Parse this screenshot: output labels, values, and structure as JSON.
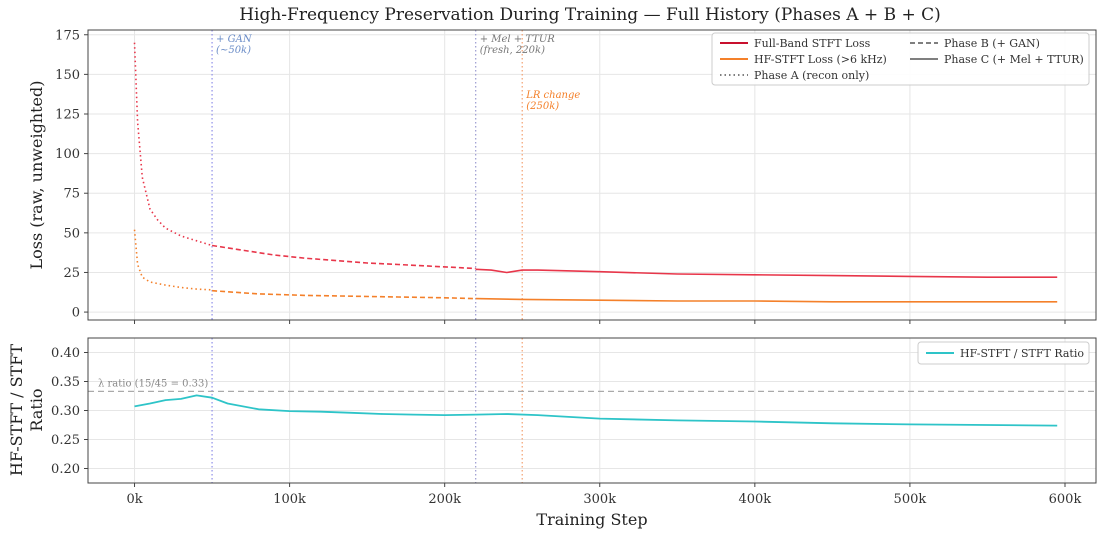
{
  "chart_data": [
    {
      "type": "line",
      "title": "High-Frequency Preservation During Training — Full History (Phases A + B + C)",
      "xlabel": "",
      "ylabel": "Loss (raw, unweighted)",
      "xlim": [
        -30000,
        620000
      ],
      "ylim": [
        -5,
        178
      ],
      "yticks": [
        0,
        25,
        50,
        75,
        100,
        125,
        150,
        175
      ],
      "grid": true,
      "legend_position": "top-right",
      "legend": [
        {
          "label": "Full-Band STFT Loss",
          "color": "#c8102e",
          "style": "solid"
        },
        {
          "label": "HF-STFT Loss (>6 kHz)",
          "color": "#f4802a",
          "style": "solid"
        },
        {
          "label": "Phase A (recon only)",
          "color": "#555555",
          "style": "dotted"
        },
        {
          "label": "Phase B (+ GAN)",
          "color": "#555555",
          "style": "dashed"
        },
        {
          "label": "Phase C (+ Mel + TTUR)",
          "color": "#555555",
          "style": "solid"
        }
      ],
      "series": [
        {
          "name": "Full-Band STFT Loss",
          "color": "#e8364a",
          "phases": [
            {
              "phase": "A",
              "style": "dotted",
              "x": [
                0,
                2000,
                5000,
                10000,
                15000,
                20000,
                30000,
                40000,
                50000
              ],
              "y": [
                170,
                120,
                85,
                65,
                58,
                53,
                48,
                45,
                42
              ]
            },
            {
              "phase": "B",
              "style": "dashed",
              "x": [
                50000,
                70000,
                90000,
                110000,
                130000,
                150000,
                170000,
                190000,
                210000,
                220000
              ],
              "y": [
                42,
                39,
                36,
                34,
                32.5,
                31,
                30,
                29,
                28,
                27.5
              ]
            },
            {
              "phase": "C",
              "style": "solid",
              "x": [
                220000,
                230000,
                240000,
                250000,
                260000,
                300000,
                350000,
                400000,
                450000,
                500000,
                550000,
                595000
              ],
              "y": [
                27,
                26.5,
                25,
                26.5,
                26.5,
                25.5,
                24,
                23.5,
                23,
                22.5,
                22,
                22
              ]
            }
          ]
        },
        {
          "name": "HF-STFT Loss (>6 kHz)",
          "color": "#f4802a",
          "phases": [
            {
              "phase": "A",
              "style": "dotted",
              "x": [
                0,
                2000,
                5000,
                10000,
                20000,
                30000,
                40000,
                50000
              ],
              "y": [
                52,
                30,
                22,
                19,
                17,
                15.5,
                14.5,
                14
              ]
            },
            {
              "phase": "B",
              "style": "dashed",
              "x": [
                50000,
                80000,
                110000,
                140000,
                170000,
                200000,
                220000
              ],
              "y": [
                13.5,
                11.5,
                10.5,
                10,
                9.5,
                9,
                8.5
              ]
            },
            {
              "phase": "C",
              "style": "solid",
              "x": [
                220000,
                250000,
                300000,
                350000,
                400000,
                450000,
                500000,
                550000,
                595000
              ],
              "y": [
                8.5,
                8,
                7.5,
                7,
                7,
                6.5,
                6.5,
                6.5,
                6.5
              ]
            }
          ]
        }
      ],
      "vlines": [
        {
          "x": 50000,
          "color": "#8e8ee8",
          "label": "+ GAN\n(~50k)",
          "label_color": "#6a8cc7"
        },
        {
          "x": 220000,
          "color": "#9a9ad0",
          "label": "+ Mel + TTUR\n(fresh, 220k)",
          "label_color": "#777777"
        },
        {
          "x": 250000,
          "color": "#f4a070",
          "label": "LR change\n(250k)",
          "label_color": "#f4802a"
        }
      ]
    },
    {
      "type": "line",
      "title": "",
      "xlabel": "Training Step",
      "ylabel": "HF-STFT / STFT\nRatio",
      "xlim": [
        -30000,
        620000
      ],
      "ylim": [
        0.175,
        0.425
      ],
      "yticks": [
        0.2,
        0.25,
        0.3,
        0.35,
        0.4
      ],
      "xticks": [
        0,
        100000,
        200000,
        300000,
        400000,
        500000,
        600000
      ],
      "xtick_labels": [
        "0k",
        "100k",
        "200k",
        "300k",
        "400k",
        "500k",
        "600k"
      ],
      "grid": true,
      "legend_position": "top-right",
      "legend": [
        {
          "label": "HF-STFT / STFT Ratio",
          "color": "#2ec4c8",
          "style": "solid"
        }
      ],
      "series": [
        {
          "name": "HF-STFT / STFT Ratio",
          "color": "#2ec4c8",
          "x": [
            0,
            10000,
            20000,
            30000,
            40000,
            50000,
            60000,
            80000,
            100000,
            120000,
            140000,
            160000,
            180000,
            200000,
            220000,
            240000,
            260000,
            300000,
            350000,
            400000,
            450000,
            500000,
            550000,
            595000
          ],
          "y": [
            0.307,
            0.312,
            0.318,
            0.32,
            0.326,
            0.322,
            0.312,
            0.302,
            0.299,
            0.298,
            0.296,
            0.294,
            0.293,
            0.292,
            0.293,
            0.294,
            0.292,
            0.286,
            0.283,
            0.281,
            0.278,
            0.276,
            0.275,
            0.274
          ]
        }
      ],
      "hline": {
        "y": 0.333,
        "label": "λ ratio (15/45 = 0.33)"
      },
      "vlines": [
        {
          "x": 50000,
          "color": "#8e8ee8"
        },
        {
          "x": 220000,
          "color": "#9a9ad0"
        },
        {
          "x": 250000,
          "color": "#f4a070"
        }
      ]
    }
  ]
}
